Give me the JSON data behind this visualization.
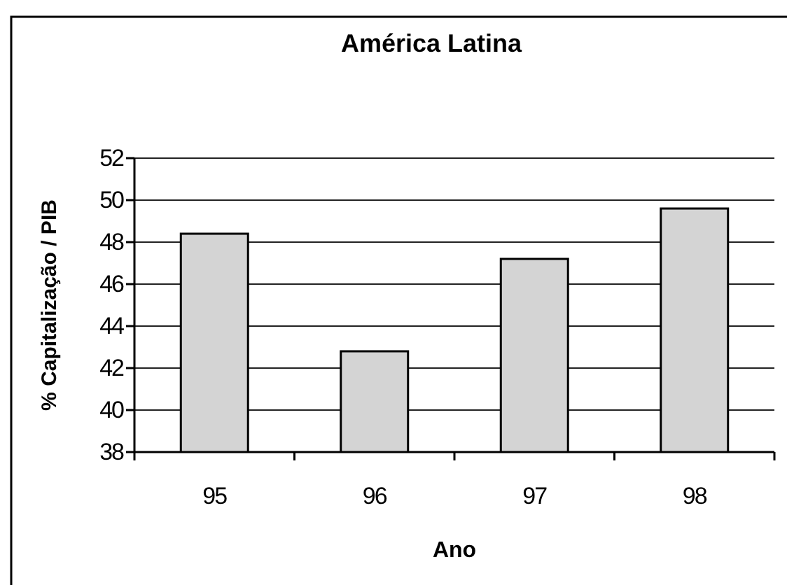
{
  "chart_data": {
    "type": "bar",
    "title": "América Latina",
    "xlabel": "Ano",
    "ylabel": "% Capitalização / PIB",
    "categories": [
      "95",
      "96",
      "97",
      "98"
    ],
    "values": [
      48.4,
      42.8,
      47.2,
      49.6
    ],
    "color": "#d4d4d4",
    "ylim": [
      38,
      52
    ],
    "yticks": [
      38,
      40,
      42,
      44,
      46,
      48,
      50,
      52
    ],
    "grid": "y"
  }
}
